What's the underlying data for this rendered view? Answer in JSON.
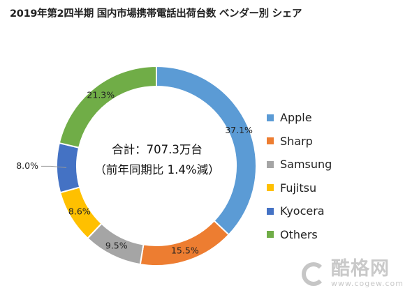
{
  "chart_data": {
    "type": "pie",
    "variant": "donut",
    "title": "2019年第2四半期 国内市場携帯電話出荷台数 ベンダー別 シェア",
    "center_label": [
      "合計：707.3万台",
      "（前年同期比 1.4%減）"
    ],
    "unit": "%",
    "slices": [
      {
        "name": "Apple",
        "value": 37.1,
        "label": "37.1%",
        "color": "#5b9bd5"
      },
      {
        "name": "Sharp",
        "value": 15.5,
        "label": "15.5%",
        "color": "#ed7d31"
      },
      {
        "name": "Samsung",
        "value": 9.5,
        "label": "9.5%",
        "color": "#a5a5a5"
      },
      {
        "name": "Fujitsu",
        "value": 8.6,
        "label": "8.6%",
        "color": "#ffc000"
      },
      {
        "name": "Kyocera",
        "value": 8.0,
        "label": "8.0%",
        "color": "#4472c4"
      },
      {
        "name": "Others",
        "value": 21.3,
        "label": "21.3%",
        "color": "#70ad47"
      }
    ],
    "legend_position": "right"
  },
  "watermark": {
    "brand": "酷格网",
    "url": "www.cogew.com"
  }
}
